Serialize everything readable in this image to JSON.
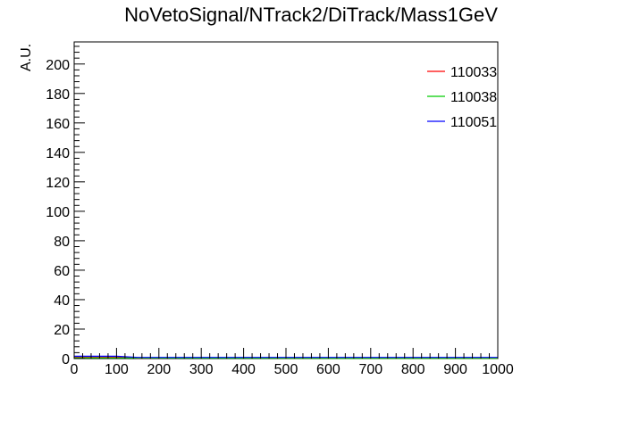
{
  "chart_data": {
    "type": "line",
    "title": "NoVetoSignal/NTrack2/DiTrack/Mass1GeV",
    "xlabel": "",
    "ylabel": "A.U.",
    "xlim": [
      0,
      1000
    ],
    "ylim": [
      0,
      215
    ],
    "x_ticks": [
      0,
      100,
      200,
      300,
      400,
      500,
      600,
      700,
      800,
      900,
      1000
    ],
    "y_ticks": [
      0,
      20,
      40,
      60,
      80,
      100,
      120,
      140,
      160,
      180,
      200
    ],
    "grid": false,
    "legend_position": "top-right",
    "series": [
      {
        "name": "110033",
        "color": "#ff0000",
        "points": [
          [
            0,
            1.2
          ],
          [
            100,
            1.0
          ],
          [
            150,
            0.3
          ],
          [
            400,
            0.4
          ],
          [
            500,
            0.3
          ],
          [
            1000,
            0.2
          ]
        ]
      },
      {
        "name": "110038",
        "color": "#00cc00",
        "points": [
          [
            0,
            0.5
          ],
          [
            100,
            0.4
          ],
          [
            500,
            0.2
          ],
          [
            1000,
            0.1
          ]
        ]
      },
      {
        "name": "110051",
        "color": "#0000ff",
        "points": [
          [
            0,
            1.6
          ],
          [
            100,
            1.6
          ],
          [
            150,
            0.8
          ],
          [
            1000,
            0.8
          ]
        ]
      }
    ]
  }
}
